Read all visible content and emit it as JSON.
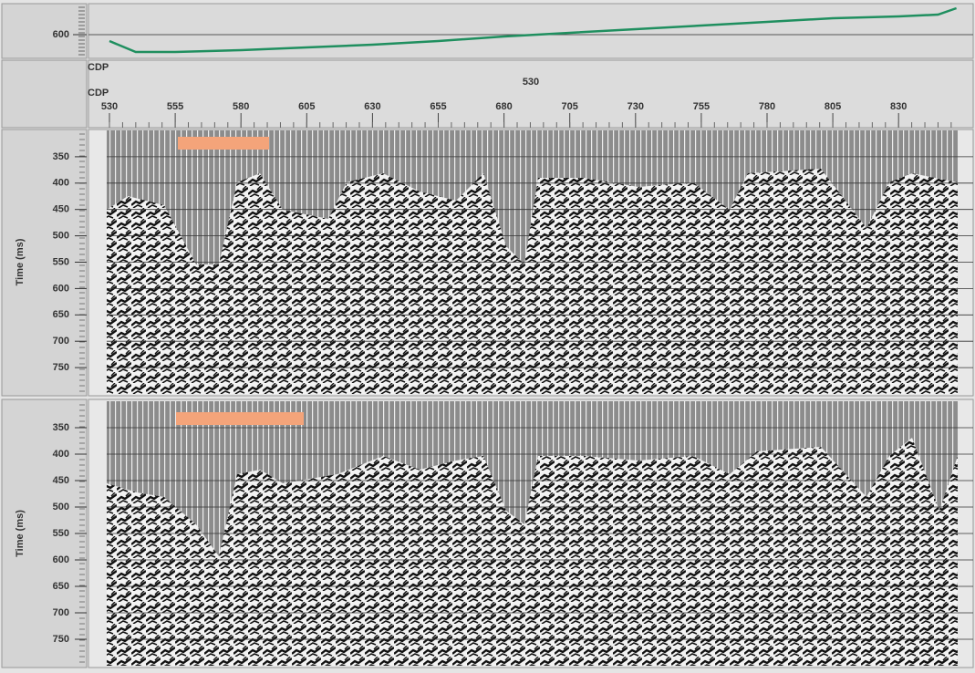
{
  "header": {
    "ytick": 600,
    "ylim": [
      576,
      630
    ],
    "xlim": [
      530,
      852
    ],
    "curve": {
      "color": "#1f8f5f",
      "x": [
        530,
        540,
        555,
        580,
        605,
        630,
        655,
        680,
        705,
        730,
        755,
        780,
        805,
        830,
        845,
        852
      ],
      "values": [
        593,
        581,
        581,
        583,
        586,
        589,
        593,
        598,
        602,
        606,
        610,
        614,
        618,
        620,
        622,
        629
      ]
    }
  },
  "cdp_axis": {
    "label_1": "CDP",
    "label_2": "CDP",
    "current": 530,
    "ticks": [
      530,
      555,
      580,
      605,
      630,
      655,
      680,
      705,
      730,
      755,
      780,
      805,
      830
    ]
  },
  "panels": [
    {
      "ylabel": "Time (ms)",
      "ylim": [
        300,
        800
      ],
      "yticks": [
        350,
        400,
        450,
        500,
        550,
        600,
        650,
        700,
        750
      ]
    },
    {
      "ylabel": "Time (ms)",
      "ylim": [
        300,
        800
      ],
      "yticks": [
        350,
        400,
        450,
        500,
        550,
        600,
        650,
        700,
        750
      ]
    }
  ]
}
